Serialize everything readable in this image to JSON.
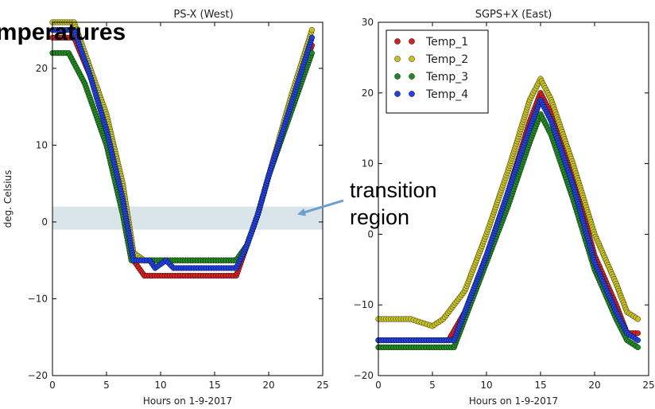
{
  "header": {
    "title": "Temperatures"
  },
  "annotation": {
    "line1": "transition",
    "line2": "region"
  },
  "colors": {
    "Temp_1": "#d42020",
    "Temp_2": "#c8c21e",
    "Temp_3": "#1f8a1f",
    "Temp_4": "#2040e0",
    "band": "#d3e0e6",
    "arrow": "#6a9fd0"
  },
  "chart_data": [
    {
      "type": "scatter",
      "title": "PS-X (West)",
      "xlabel": "Hours on 1-9-2017",
      "ylabel": "deg. Celsius",
      "xlim": [
        0,
        25
      ],
      "ylim": [
        -20,
        26
      ],
      "x_ticks": [
        "0",
        "5",
        "10",
        "15",
        "20",
        "25"
      ],
      "y_ticks": [
        "20",
        "10",
        "0",
        "−10",
        "−20"
      ],
      "band": [
        -1,
        2
      ],
      "series": [
        {
          "name": "Temp_1",
          "points": [
            [
              0,
              24
            ],
            [
              2,
              24
            ],
            [
              3.5,
              19
            ],
            [
              5,
              12
            ],
            [
              6.5,
              3
            ],
            [
              7.5,
              -5
            ],
            [
              8.5,
              -7
            ],
            [
              17,
              -7
            ],
            [
              18,
              -3
            ],
            [
              19,
              1
            ],
            [
              20,
              6
            ],
            [
              22,
              15
            ],
            [
              24,
              23
            ]
          ]
        },
        {
          "name": "Temp_2",
          "points": [
            [
              0,
              26
            ],
            [
              2,
              26
            ],
            [
              3.5,
              20
            ],
            [
              5,
              14
            ],
            [
              6.5,
              5
            ],
            [
              7.5,
              -4
            ],
            [
              8.5,
              -5
            ],
            [
              17,
              -5
            ],
            [
              18,
              -3
            ],
            [
              19,
              1
            ],
            [
              20,
              6
            ],
            [
              22,
              16
            ],
            [
              24,
              25
            ]
          ]
        },
        {
          "name": "Temp_3",
          "points": [
            [
              0,
              22
            ],
            [
              1.5,
              22
            ],
            [
              3,
              18
            ],
            [
              5,
              10
            ],
            [
              6.5,
              1
            ],
            [
              7.3,
              -5
            ],
            [
              17,
              -5
            ],
            [
              18,
              -3
            ],
            [
              19,
              1
            ],
            [
              20,
              6
            ],
            [
              22,
              14
            ],
            [
              24,
              22
            ]
          ]
        },
        {
          "name": "Temp_4",
          "points": [
            [
              0,
              25
            ],
            [
              2,
              25
            ],
            [
              3.5,
              19
            ],
            [
              5,
              12
            ],
            [
              6.5,
              3
            ],
            [
              7.5,
              -5
            ],
            [
              9,
              -5
            ],
            [
              9.5,
              -6
            ],
            [
              10.5,
              -5
            ],
            [
              11.2,
              -6
            ],
            [
              17,
              -6
            ],
            [
              18,
              -3
            ],
            [
              19,
              1
            ],
            [
              20,
              6
            ],
            [
              22,
              15
            ],
            [
              24,
              24
            ]
          ]
        }
      ]
    },
    {
      "type": "scatter",
      "title": "SGPS+X (East)",
      "xlabel": "Hours on 1-9-2017",
      "ylabel": "",
      "xlim": [
        0,
        25
      ],
      "ylim": [
        -20,
        30
      ],
      "x_ticks": [
        "0",
        "5",
        "10",
        "15",
        "20",
        "25"
      ],
      "y_ticks": [
        "30",
        "20",
        "10",
        "0",
        "−10",
        "−20"
      ],
      "legend": {
        "placement": "top-left",
        "entries": [
          "Temp_1",
          "Temp_2",
          "Temp_3",
          "Temp_4"
        ]
      },
      "series": [
        {
          "name": "Temp_1",
          "points": [
            [
              0,
              -15
            ],
            [
              6.5,
              -15
            ],
            [
              8,
              -11
            ],
            [
              10,
              -3
            ],
            [
              12,
              6
            ],
            [
              14,
              16
            ],
            [
              15,
              20
            ],
            [
              16,
              17
            ],
            [
              18,
              8
            ],
            [
              20,
              -3
            ],
            [
              22,
              -10
            ],
            [
              23,
              -14
            ],
            [
              24,
              -14
            ]
          ]
        },
        {
          "name": "Temp_2",
          "points": [
            [
              0,
              -12
            ],
            [
              3,
              -12
            ],
            [
              4,
              -12.5
            ],
            [
              5,
              -13
            ],
            [
              6,
              -12
            ],
            [
              8,
              -8
            ],
            [
              10,
              0
            ],
            [
              12,
              9
            ],
            [
              14,
              19
            ],
            [
              15,
              22
            ],
            [
              16,
              19
            ],
            [
              18,
              10
            ],
            [
              20,
              0
            ],
            [
              22,
              -7
            ],
            [
              23,
              -11
            ],
            [
              24,
              -12
            ]
          ]
        },
        {
          "name": "Temp_3",
          "points": [
            [
              0,
              -16
            ],
            [
              7,
              -16
            ],
            [
              8,
              -12
            ],
            [
              10,
              -4
            ],
            [
              12,
              4
            ],
            [
              14,
              13
            ],
            [
              15,
              17
            ],
            [
              16,
              14
            ],
            [
              18,
              5
            ],
            [
              20,
              -5
            ],
            [
              22,
              -12
            ],
            [
              23,
              -15
            ],
            [
              24,
              -16
            ]
          ]
        },
        {
          "name": "Temp_4",
          "points": [
            [
              0,
              -15
            ],
            [
              7,
              -15
            ],
            [
              8,
              -11
            ],
            [
              10,
              -3
            ],
            [
              12,
              6
            ],
            [
              14,
              15
            ],
            [
              15,
              19
            ],
            [
              16,
              16
            ],
            [
              18,
              7
            ],
            [
              20,
              -4
            ],
            [
              22,
              -11
            ],
            [
              23,
              -14
            ],
            [
              24,
              -15
            ]
          ]
        }
      ]
    }
  ]
}
